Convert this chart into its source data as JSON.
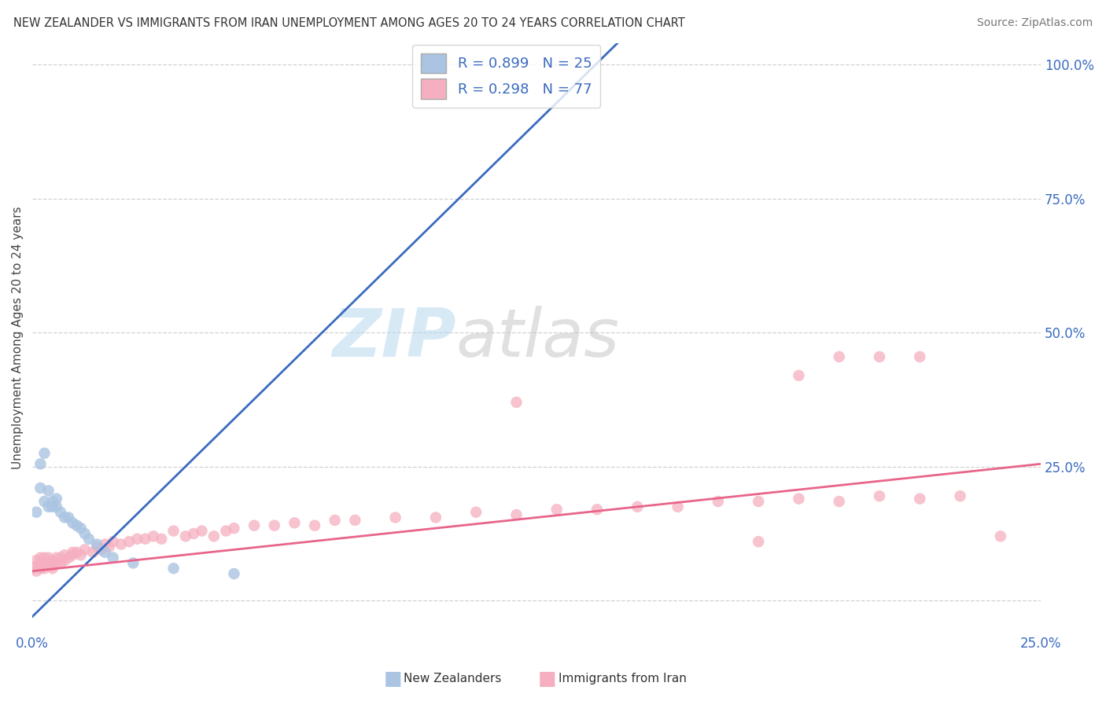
{
  "title": "NEW ZEALANDER VS IMMIGRANTS FROM IRAN UNEMPLOYMENT AMONG AGES 20 TO 24 YEARS CORRELATION CHART",
  "source": "Source: ZipAtlas.com",
  "ylabel": "Unemployment Among Ages 20 to 24 years",
  "legend_r": [
    0.899,
    0.298
  ],
  "legend_n": [
    25,
    77
  ],
  "color_nz": "#aac4e2",
  "color_iran": "#f5afc0",
  "line_color_nz": "#3a6bbf",
  "line_color_iran": "#e8658a",
  "xmin": 0.0,
  "xmax": 0.25,
  "ymin": -0.06,
  "ymax": 1.04,
  "grid_color": "#d0d0d0",
  "watermark_zip": "ZIP",
  "watermark_atlas": "atlas",
  "nz_pts_x": [
    0.001,
    0.002,
    0.002,
    0.003,
    0.003,
    0.004,
    0.004,
    0.005,
    0.005,
    0.006,
    0.006,
    0.007,
    0.008,
    0.009,
    0.01,
    0.011,
    0.012,
    0.013,
    0.014,
    0.016,
    0.018,
    0.02,
    0.025,
    0.035,
    0.05
  ],
  "nz_pts_y": [
    0.165,
    0.21,
    0.255,
    0.275,
    0.185,
    0.175,
    0.205,
    0.185,
    0.175,
    0.19,
    0.175,
    0.165,
    0.155,
    0.155,
    0.145,
    0.14,
    0.135,
    0.125,
    0.115,
    0.105,
    0.09,
    0.08,
    0.07,
    0.06,
    0.05
  ],
  "nz_line_x0": 0.0,
  "nz_line_y0": -0.03,
  "nz_line_x1": 0.145,
  "nz_line_y1": 1.04,
  "iran_line_x0": 0.0,
  "iran_line_y0": 0.055,
  "iran_line_x1": 0.25,
  "iran_line_y1": 0.255,
  "iran_pts_x": [
    0.0,
    0.001,
    0.001,
    0.001,
    0.002,
    0.002,
    0.002,
    0.003,
    0.003,
    0.003,
    0.003,
    0.004,
    0.004,
    0.004,
    0.005,
    0.005,
    0.005,
    0.005,
    0.006,
    0.006,
    0.007,
    0.007,
    0.008,
    0.008,
    0.009,
    0.01,
    0.01,
    0.011,
    0.012,
    0.013,
    0.015,
    0.016,
    0.017,
    0.018,
    0.019,
    0.02,
    0.022,
    0.024,
    0.026,
    0.028,
    0.03,
    0.032,
    0.035,
    0.038,
    0.04,
    0.042,
    0.045,
    0.048,
    0.05,
    0.055,
    0.06,
    0.065,
    0.07,
    0.075,
    0.08,
    0.09,
    0.1,
    0.11,
    0.12,
    0.13,
    0.14,
    0.15,
    0.16,
    0.17,
    0.18,
    0.19,
    0.2,
    0.21,
    0.22,
    0.23,
    0.12,
    0.19,
    0.2,
    0.21,
    0.22,
    0.24,
    0.18
  ],
  "iran_pts_y": [
    0.06,
    0.055,
    0.065,
    0.075,
    0.06,
    0.07,
    0.08,
    0.06,
    0.065,
    0.07,
    0.08,
    0.065,
    0.07,
    0.08,
    0.06,
    0.065,
    0.07,
    0.075,
    0.07,
    0.08,
    0.07,
    0.08,
    0.075,
    0.085,
    0.08,
    0.085,
    0.09,
    0.09,
    0.085,
    0.095,
    0.09,
    0.1,
    0.095,
    0.105,
    0.1,
    0.11,
    0.105,
    0.11,
    0.115,
    0.115,
    0.12,
    0.115,
    0.13,
    0.12,
    0.125,
    0.13,
    0.12,
    0.13,
    0.135,
    0.14,
    0.14,
    0.145,
    0.14,
    0.15,
    0.15,
    0.155,
    0.155,
    0.165,
    0.16,
    0.17,
    0.17,
    0.175,
    0.175,
    0.185,
    0.185,
    0.19,
    0.185,
    0.195,
    0.19,
    0.195,
    0.37,
    0.42,
    0.455,
    0.455,
    0.455,
    0.12,
    0.11
  ]
}
